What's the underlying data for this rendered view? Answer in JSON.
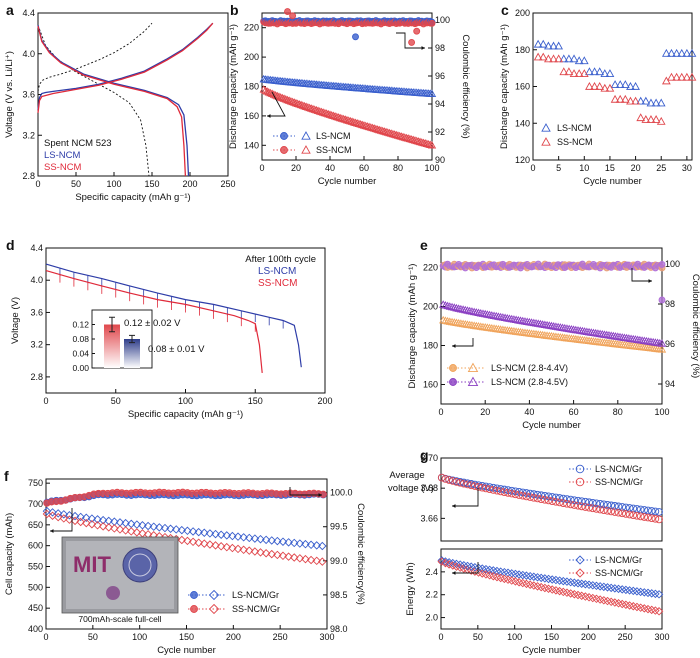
{
  "colors": {
    "blue": "#3a5fcd",
    "red": "#e0474c",
    "ls_line": "#2e3da8",
    "ss_line": "#e02a3a",
    "spent": "#111111"
  },
  "chart_data": [
    {
      "id": "a",
      "panel_label": "a",
      "type": "line",
      "xlabel": "Specific capacity (mAh g⁻¹)",
      "ylabel": "Voltage (V vs. Li/Li⁺)",
      "xlim": [
        0,
        250
      ],
      "ylim": [
        2.8,
        4.4
      ],
      "xticks": [
        0,
        50,
        100,
        150,
        200,
        250
      ],
      "yticks": [
        2.8,
        3.2,
        3.6,
        4.0,
        4.4
      ],
      "legend": [
        "Spent NCM 523",
        "LS-NCM",
        "SS-NCM"
      ],
      "series": [
        {
          "name": "Spent NCM 523 charge",
          "x": [
            0,
            2,
            6,
            15,
            30,
            50,
            80,
            100,
            120,
            140,
            150
          ],
          "y": [
            3.63,
            3.7,
            3.74,
            3.77,
            3.8,
            3.85,
            3.94,
            4.01,
            4.1,
            4.22,
            4.3
          ]
        },
        {
          "name": "Spent NCM 523 discharge",
          "x": [
            0,
            10,
            25,
            50,
            80,
            100,
            120,
            135,
            142,
            146
          ],
          "y": [
            4.28,
            4.08,
            3.95,
            3.82,
            3.7,
            3.62,
            3.52,
            3.35,
            3.1,
            2.8
          ]
        },
        {
          "name": "LS-NCM charge",
          "x": [
            0,
            2,
            5,
            10,
            20,
            50,
            80,
            110,
            140,
            170,
            190,
            200,
            210,
            222,
            230
          ],
          "y": [
            3.45,
            3.57,
            3.61,
            3.62,
            3.63,
            3.66,
            3.7,
            3.76,
            3.83,
            3.95,
            4.04,
            4.1,
            4.16,
            4.24,
            4.3
          ]
        },
        {
          "name": "LS-NCM discharge",
          "x": [
            0,
            5,
            15,
            30,
            60,
            100,
            140,
            170,
            185,
            192,
            196,
            198
          ],
          "y": [
            4.28,
            4.13,
            4.02,
            3.92,
            3.8,
            3.71,
            3.64,
            3.57,
            3.5,
            3.4,
            3.1,
            2.8
          ]
        },
        {
          "name": "SS-NCM charge",
          "x": [
            0,
            2,
            5,
            10,
            20,
            50,
            80,
            110,
            140,
            170,
            190,
            200,
            210,
            222,
            230
          ],
          "y": [
            3.42,
            3.54,
            3.58,
            3.59,
            3.61,
            3.65,
            3.69,
            3.75,
            3.82,
            3.94,
            4.03,
            4.09,
            4.15,
            4.23,
            4.3
          ]
        },
        {
          "name": "SS-NCM discharge",
          "x": [
            0,
            5,
            15,
            30,
            60,
            100,
            140,
            170,
            183,
            189,
            192,
            194
          ],
          "y": [
            4.27,
            4.12,
            4.01,
            3.91,
            3.79,
            3.7,
            3.63,
            3.56,
            3.48,
            3.38,
            3.1,
            2.8
          ]
        }
      ]
    },
    {
      "id": "b",
      "panel_label": "b",
      "type": "scatter",
      "xlabel": "Cycle number",
      "ylabel": "Discharge capacity (mAh g⁻¹)",
      "y2label": "Coulombic efficiency (%)",
      "xlim": [
        0,
        100
      ],
      "ylim": [
        130,
        230
      ],
      "y2lim": [
        90,
        100.5
      ],
      "xticks": [
        0,
        20,
        40,
        60,
        80,
        100
      ],
      "yticks": [
        140,
        160,
        180,
        200,
        220
      ],
      "y2ticks": [
        90,
        92,
        94,
        96,
        98,
        100
      ],
      "legend": [
        "LS-NCM",
        "SS-NCM"
      ],
      "capacity_start": {
        "LS-NCM": 185,
        "SS-NCM": 178
      },
      "capacity_end": {
        "LS-NCM": 175,
        "SS-NCM": 140
      },
      "ce_level": {
        "LS-NCM": 99.9,
        "SS-NCM": 99.8
      },
      "ce_outliers": [
        {
          "series": "SS-NCM",
          "x": 15,
          "y": 100.6
        },
        {
          "series": "SS-NCM",
          "x": 18,
          "y": 100.3
        },
        {
          "series": "LS-NCM",
          "x": 55,
          "y": 98.8
        },
        {
          "series": "SS-NCM",
          "x": 88,
          "y": 98.4
        },
        {
          "series": "SS-NCM",
          "x": 91,
          "y": 99.2
        }
      ]
    },
    {
      "id": "c",
      "panel_label": "c",
      "type": "scatter",
      "xlabel": "Cycle number",
      "ylabel": "Discharge capacity (mAh g⁻¹)",
      "xlim": [
        0,
        31
      ],
      "ylim": [
        120,
        200
      ],
      "xticks": [
        0,
        5,
        10,
        15,
        20,
        25,
        30
      ],
      "yticks": [
        120,
        140,
        160,
        180,
        200
      ],
      "legend": [
        "LS-NCM",
        "SS-NCM"
      ],
      "LS-NCM": [
        183,
        183,
        182,
        182,
        182,
        175,
        175,
        175,
        174,
        174,
        168,
        168,
        168,
        167,
        167,
        161,
        161,
        161,
        160,
        160,
        152,
        152,
        151,
        151,
        151,
        178,
        178,
        178,
        178,
        178,
        178
      ],
      "SS-NCM": [
        176,
        176,
        175,
        175,
        175,
        168,
        168,
        167,
        167,
        167,
        160,
        160,
        160,
        159,
        159,
        153,
        153,
        153,
        152,
        152,
        143,
        142,
        142,
        142,
        141,
        163,
        165,
        165,
        165,
        165,
        165
      ]
    },
    {
      "id": "d",
      "panel_label": "d",
      "type": "line",
      "xlabel": "Specific capacity (mAh g⁻¹)",
      "ylabel": "Voltage (V)",
      "xlim": [
        0,
        200
      ],
      "ylim": [
        2.6,
        4.4
      ],
      "xticks": [
        0,
        50,
        100,
        150,
        200
      ],
      "yticks": [
        2.8,
        3.2,
        3.6,
        4.0,
        4.4
      ],
      "annotation": "After 100th cycle",
      "legend": [
        "LS-NCM",
        "SS-NCM"
      ],
      "series": [
        {
          "name": "LS-NCM",
          "x": [
            0,
            20,
            40,
            60,
            80,
            100,
            120,
            140,
            160,
            170,
            178,
            181,
            183
          ],
          "y": [
            4.2,
            4.1,
            4.02,
            3.93,
            3.84,
            3.76,
            3.7,
            3.62,
            3.54,
            3.5,
            3.44,
            3.2,
            2.92
          ]
        },
        {
          "name": "SS-NCM",
          "x": [
            0,
            20,
            40,
            60,
            80,
            100,
            120,
            135,
            145,
            150,
            153,
            155
          ],
          "y": [
            4.12,
            4.02,
            3.93,
            3.84,
            3.76,
            3.7,
            3.62,
            3.56,
            3.5,
            3.46,
            3.2,
            2.85
          ]
        }
      ],
      "inset": {
        "type": "bar",
        "ylim": [
          0,
          0.16
        ],
        "yticks": [
          0.0,
          0.04,
          0.08,
          0.12
        ],
        "categories": [
          "SS-NCM",
          "LS-NCM"
        ],
        "values": [
          0.12,
          0.08
        ],
        "errors": [
          0.02,
          0.01
        ],
        "labels": [
          "0.12 ± 0.02 V",
          "0.08 ± 0.01 V"
        ]
      }
    },
    {
      "id": "e",
      "panel_label": "e",
      "type": "scatter",
      "xlabel": "Cycle number",
      "ylabel": "Discharge capacity (mAh g⁻¹)",
      "y2label": "Coulombic efficiency (%)",
      "xlim": [
        0,
        100
      ],
      "ylim": [
        150,
        230
      ],
      "y2lim": [
        93,
        100.8
      ],
      "xticks": [
        0,
        20,
        40,
        60,
        80,
        100
      ],
      "yticks": [
        160,
        180,
        200,
        220
      ],
      "y2ticks": [
        94,
        96,
        98,
        100
      ],
      "legend": [
        "LS-NCM (2.8-4.4V)",
        "LS-NCM (2.8-4.5V)"
      ],
      "capacity_start": {
        "4.4V": 193,
        "4.5V": 201
      },
      "capacity_end": {
        "4.4V": 178,
        "4.5V": 181
      },
      "ce_level": {
        "4.4V": 99.9,
        "4.5V": 99.9
      }
    },
    {
      "id": "f",
      "panel_label": "f",
      "type": "scatter",
      "xlabel": "Cycle number",
      "ylabel": "Cell capacity (mAh)",
      "y2label": "Coulombic efficiency(%)",
      "xlim": [
        0,
        300
      ],
      "ylim": [
        400,
        760
      ],
      "y2lim": [
        98,
        100.2
      ],
      "xticks": [
        0,
        50,
        100,
        150,
        200,
        250,
        300
      ],
      "yticks": [
        400,
        450,
        500,
        550,
        600,
        650,
        700,
        750
      ],
      "y2ticks": [
        98.0,
        98.5,
        99.0,
        99.5,
        100.0
      ],
      "legend": [
        "LS-NCM/Gr",
        "SS-NCM/Gr"
      ],
      "capacity_start": {
        "LS-NCM/Gr": 683,
        "SS-NCM/Gr": 676
      },
      "capacity_end": {
        "LS-NCM/Gr": 598,
        "SS-NCM/Gr": 560
      },
      "ce_level": {
        "LS-NCM/Gr": 99.97,
        "SS-NCM/Gr": 99.99
      },
      "inset_logo": "MIT",
      "inset_caption": "700mAh-scale full-cell"
    },
    {
      "id": "g_top",
      "panel_label": "g",
      "type": "scatter",
      "xlabel": "",
      "ylabel": "Average voltage (V)",
      "xlim": [
        0,
        300
      ],
      "ylim": [
        3.645,
        3.7
      ],
      "yticks": [
        3.66,
        3.68,
        3.7
      ],
      "legend": [
        "LS-NCM/Gr",
        "SS-NCM/Gr"
      ],
      "start": {
        "LS-NCM/Gr": 3.687,
        "SS-NCM/Gr": 3.687
      },
      "end": {
        "LS-NCM/Gr": 3.664,
        "SS-NCM/Gr": 3.659
      }
    },
    {
      "id": "g_bottom",
      "panel_label": "",
      "type": "scatter",
      "xlabel": "Cycle number",
      "ylabel": "Energy (Wh)",
      "xlim": [
        0,
        300
      ],
      "ylim": [
        1.9,
        2.6
      ],
      "xticks": [
        0,
        50,
        100,
        150,
        200,
        250,
        300
      ],
      "yticks": [
        2.0,
        2.2,
        2.4
      ],
      "legend": [
        "LS-NCM/Gr",
        "SS-NCM/Gr"
      ],
      "start": {
        "LS-NCM/Gr": 2.5,
        "SS-NCM/Gr": 2.49
      },
      "end": {
        "LS-NCM/Gr": 2.2,
        "SS-NCM/Gr": 2.05
      }
    }
  ]
}
